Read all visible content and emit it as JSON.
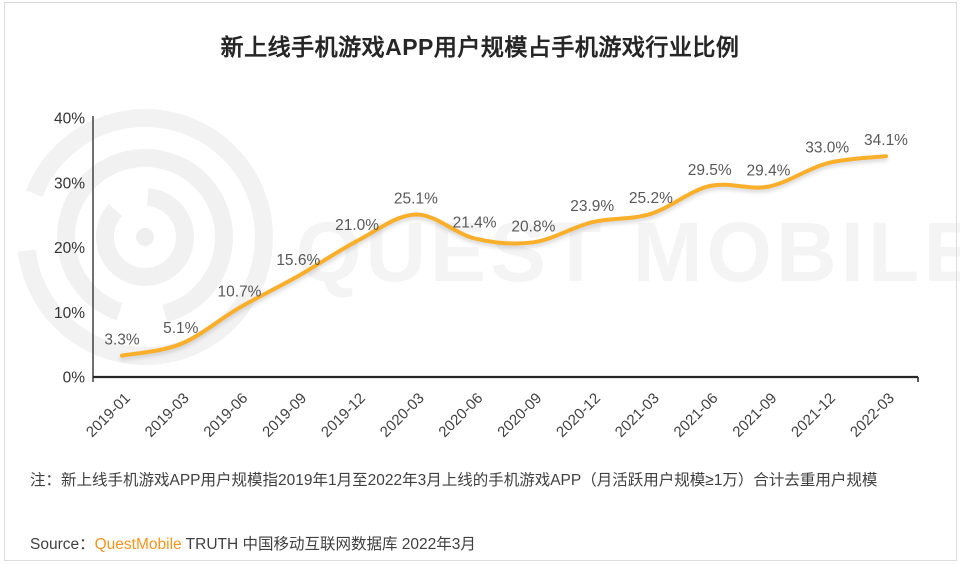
{
  "title": "新上线手机游戏APP用户规模占手机游戏行业比例",
  "watermark": {
    "text": "QUEST MOBILE"
  },
  "note": "注：新上线手机游戏APP用户规模指2019年1月至2022年3月上线的手机游戏APP（月活跃用户规模≥1万）合计去重用户规模",
  "source": {
    "label": "Source：",
    "brand": "QuestMobile",
    "rest": " TRUTH 中国移动互联网数据库 2022年3月"
  },
  "chart_data": {
    "type": "line",
    "title": "新上线手机游戏APP用户规模占手机游戏行业比例",
    "categories": [
      "2019-01",
      "2019-03",
      "2019-06",
      "2019-09",
      "2019-12",
      "2020-03",
      "2020-06",
      "2020-09",
      "2020-12",
      "2021-03",
      "2021-06",
      "2021-09",
      "2021-12",
      "2022-03"
    ],
    "values": [
      3.3,
      5.1,
      10.7,
      15.6,
      21.0,
      25.1,
      21.4,
      20.8,
      23.9,
      25.2,
      29.5,
      29.4,
      33.0,
      34.1
    ],
    "data_labels": [
      "3.3%",
      "5.1%",
      "10.7%",
      "15.6%",
      "21.0%",
      "25.1%",
      "21.4%",
      "20.8%",
      "23.9%",
      "25.2%",
      "29.5%",
      "29.4%",
      "33.0%",
      "34.1%"
    ],
    "xlabel": "",
    "ylabel": "",
    "ylim": [
      0,
      40
    ],
    "yticks": [
      "0%",
      "10%",
      "20%",
      "30%",
      "40%"
    ],
    "grid": false,
    "legend": "none",
    "line_color": "#F9AF2B",
    "label_color": "#595959",
    "tick_color": "#333333",
    "axis_color": "#333333"
  }
}
